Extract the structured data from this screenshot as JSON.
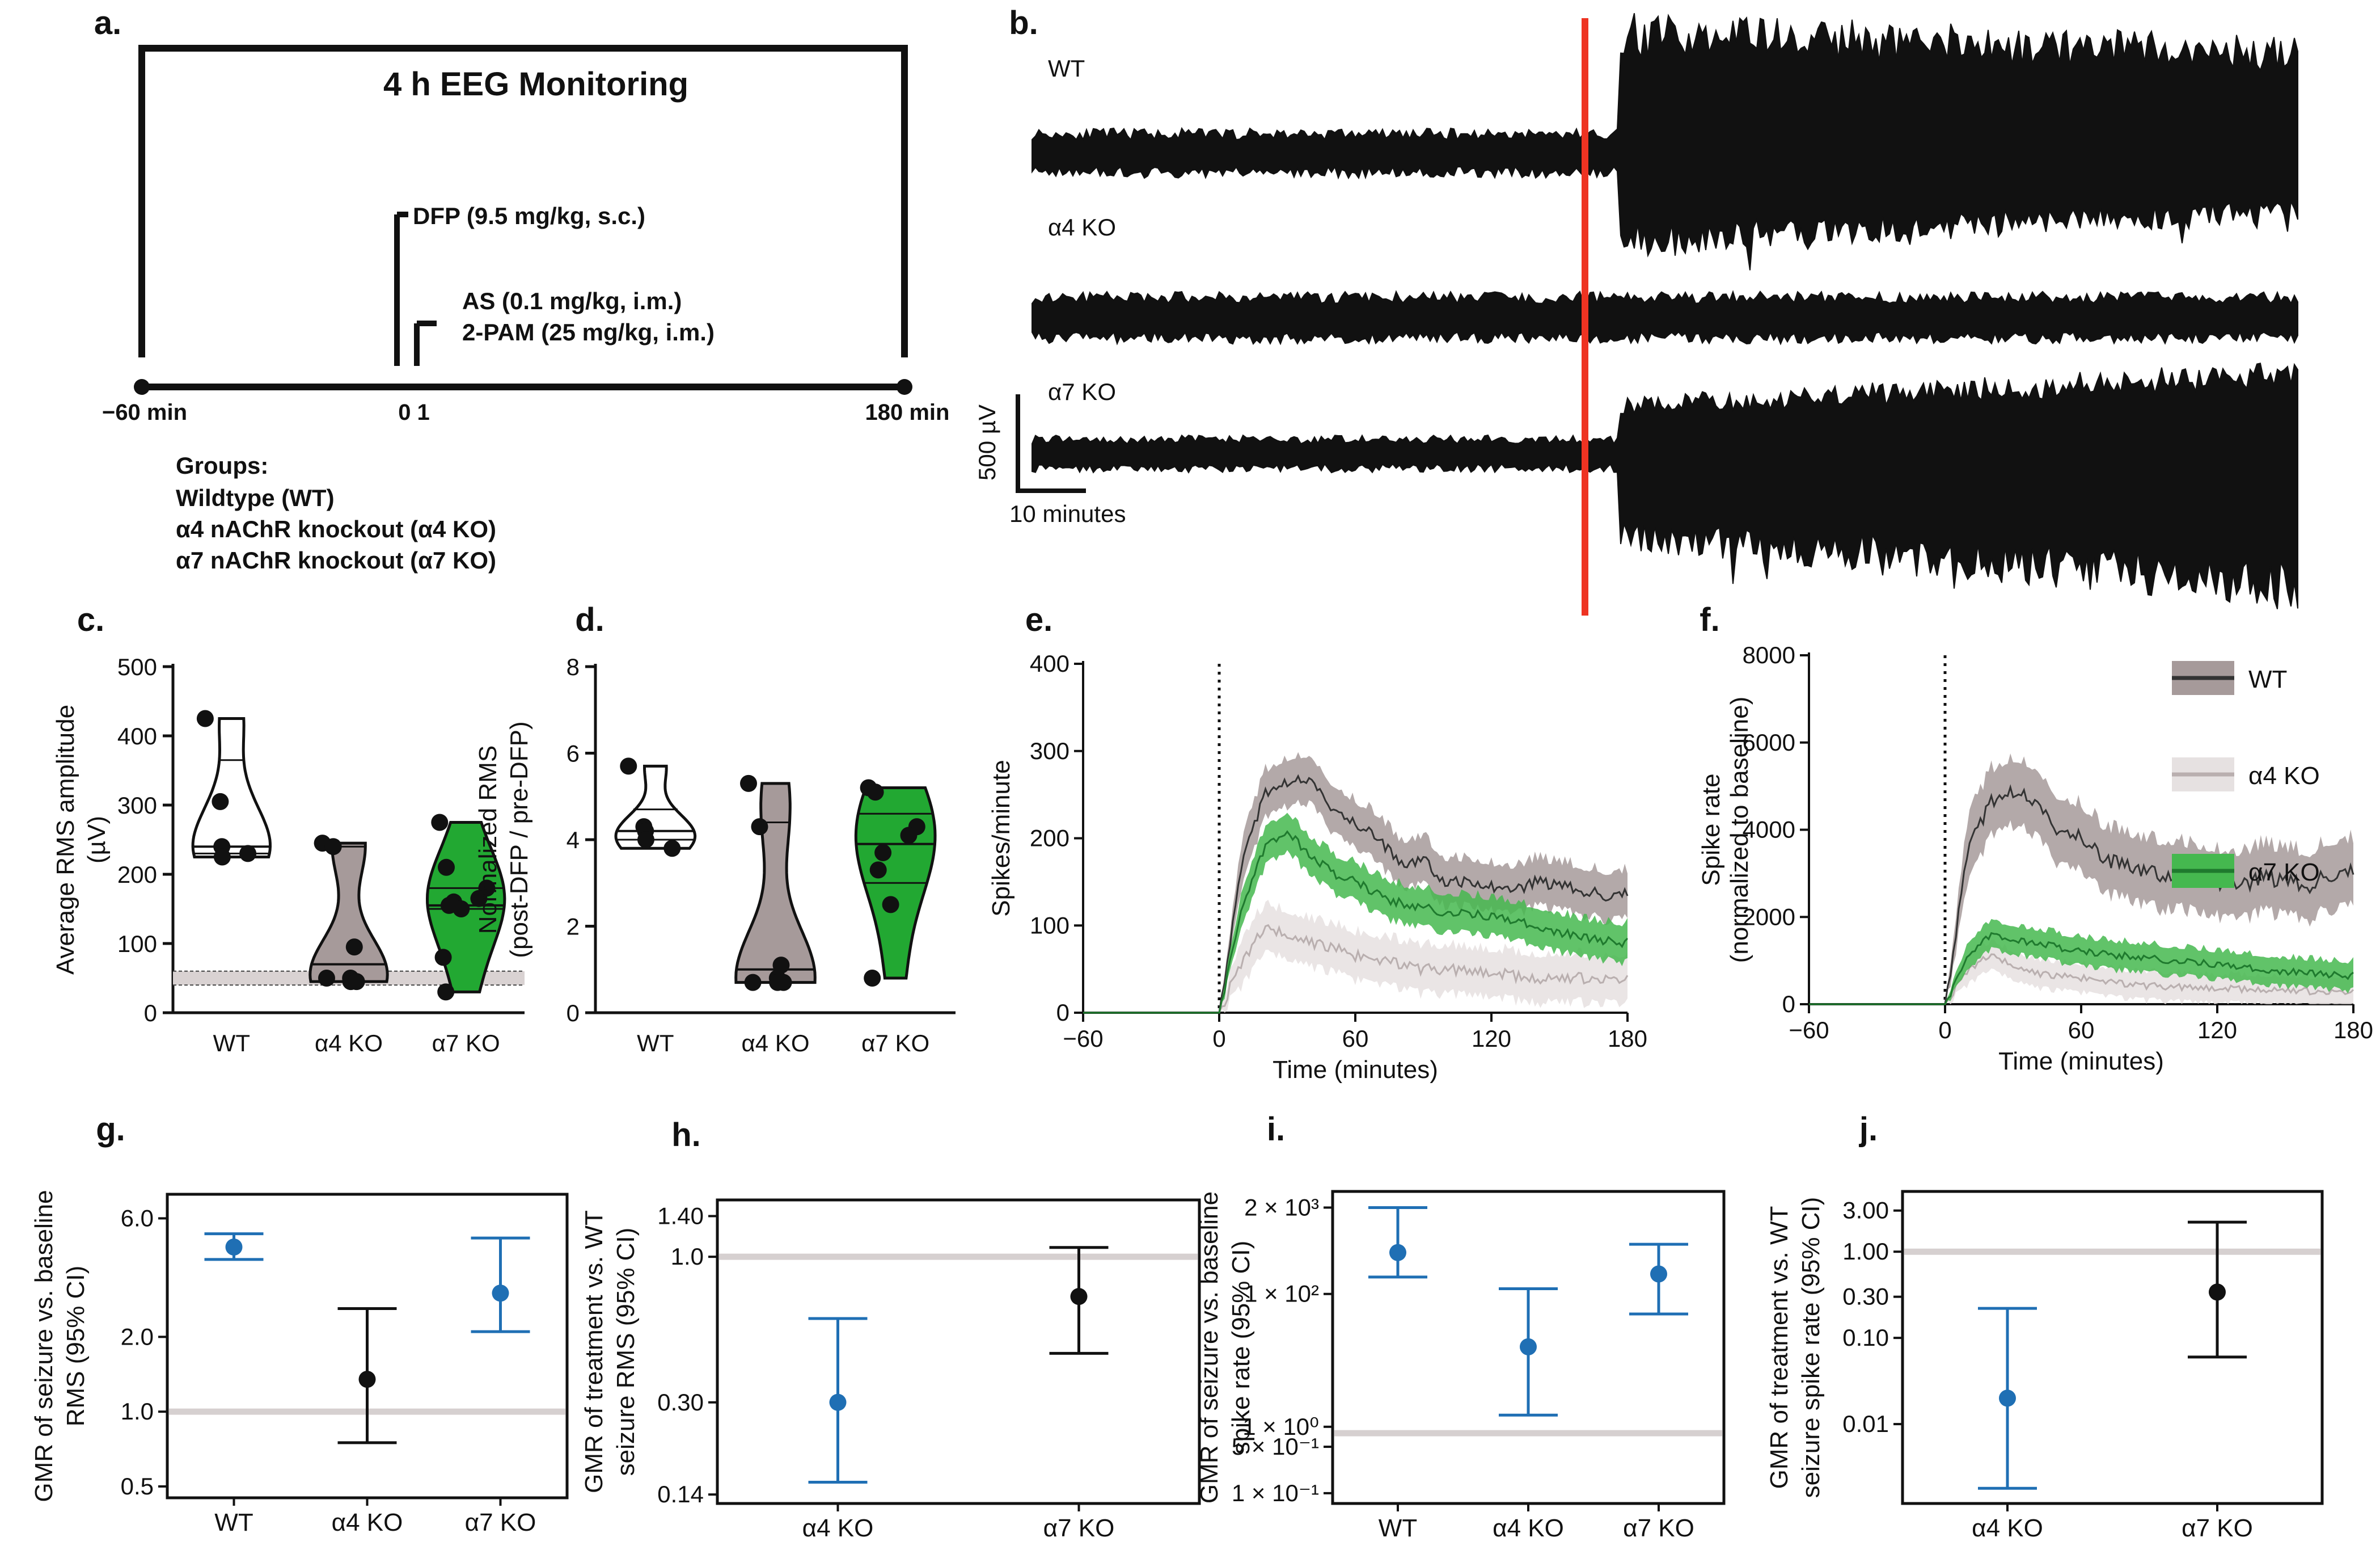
{
  "chart_data": [
    {
      "panel": "a.",
      "type": "diagram",
      "title": "4 h EEG Monitoring",
      "events": [
        {
          "label": "DFP (9.5 mg/kg, s.c.)",
          "time": 0
        },
        {
          "label": "AS (0.1 mg/kg, i.m.)",
          "time": 1
        },
        {
          "label": "2-PAM (25 mg/kg, i.m.)",
          "time": 1
        }
      ],
      "timeline": {
        "min": -60,
        "max": 180,
        "start_label": "−60 min",
        "mid_label": "0 1",
        "end_label": "180 min"
      },
      "groups_title": "Groups:",
      "groups": [
        "Wildtype (WT)",
        "α4 nAChR knockout (α4 KO)",
        "α7 nAChR knockout (α7 KO)"
      ]
    },
    {
      "panel": "b.",
      "type": "line",
      "traces": [
        "WT",
        "α4 KO",
        "α7 KO"
      ],
      "scale_amplitude": "500 µV",
      "scale_time": "10 minutes",
      "marker_color": "#ee3322"
    },
    {
      "panel": "c.",
      "type": "violin",
      "ylabel": "Average RMS amplitude (µV)",
      "ylim": [
        0,
        500
      ],
      "yticks": [
        "0",
        "100",
        "200",
        "300",
        "400",
        "500"
      ],
      "categories": [
        "WT",
        "α4 KO",
        "α7 KO"
      ],
      "points": [
        [
          425,
          305,
          240,
          225,
          230
        ],
        [
          245,
          240,
          95,
          50,
          45,
          45,
          50
        ],
        [
          275,
          210,
          180,
          165,
          160,
          155,
          150,
          80,
          30
        ]
      ],
      "medians": [
        240,
        70,
        155
      ],
      "quartiles": [
        [
          230,
          365
        ],
        [
          45,
          240
        ],
        [
          150,
          180
        ]
      ],
      "baseline_band": [
        40,
        60
      ],
      "fills": [
        "#ffffff",
        "#a69a9a",
        "#22a832"
      ]
    },
    {
      "panel": "d.",
      "type": "violin",
      "ylabel": "Normalized RMS (post-DFP / pre-DFP)",
      "ylim": [
        0,
        8
      ],
      "yticks": [
        "0",
        "2",
        "4",
        "6",
        "8"
      ],
      "categories": [
        "WT",
        "α4 KO",
        "α7 KO"
      ],
      "points": [
        [
          5.7,
          4.3,
          4.2,
          4.0,
          3.8
        ],
        [
          5.3,
          4.3,
          1.1,
          0.8,
          0.7,
          0.7,
          0.7
        ],
        [
          5.2,
          5.1,
          4.3,
          4.1,
          3.7,
          3.3,
          2.5,
          0.8
        ]
      ],
      "medians": [
        4.2,
        1.0,
        3.9
      ],
      "quartiles": [
        [
          4.0,
          4.7
        ],
        [
          0.7,
          4.4
        ],
        [
          3.0,
          4.6
        ]
      ],
      "fills": [
        "#ffffff",
        "#a69a9a",
        "#22a832"
      ]
    },
    {
      "panel": "e.",
      "type": "line",
      "xlabel": "Time (minutes)",
      "ylabel": "Spikes/minute",
      "xlim": [
        -60,
        180
      ],
      "ylim": [
        0,
        400
      ],
      "xticks": [
        "−60",
        "0",
        "60",
        "120",
        "180"
      ],
      "yticks": [
        "0",
        "100",
        "200",
        "300",
        "400"
      ],
      "series": [
        {
          "name": "WT",
          "mean": [
            [
              0,
              0
            ],
            [
              10,
              170
            ],
            [
              20,
              250
            ],
            [
              30,
              265
            ],
            [
              40,
              270
            ],
            [
              50,
              235
            ],
            [
              60,
              215
            ],
            [
              70,
              200
            ],
            [
              80,
              170
            ],
            [
              90,
              175
            ],
            [
              100,
              150
            ],
            [
              110,
              150
            ],
            [
              120,
              145
            ],
            [
              130,
              140
            ],
            [
              140,
              150
            ],
            [
              150,
              145
            ],
            [
              160,
              140
            ],
            [
              170,
              135
            ],
            [
              180,
              135
            ]
          ],
          "band": 25,
          "color": "#333333",
          "fill": "#a69a9a"
        },
        {
          "name": "α4 KO",
          "mean": [
            [
              0,
              0
            ],
            [
              10,
              60
            ],
            [
              20,
              95
            ],
            [
              30,
              90
            ],
            [
              40,
              80
            ],
            [
              50,
              75
            ],
            [
              60,
              65
            ],
            [
              70,
              60
            ],
            [
              80,
              55
            ],
            [
              90,
              50
            ],
            [
              100,
              50
            ],
            [
              120,
              45
            ],
            [
              140,
              40
            ],
            [
              160,
              40
            ],
            [
              180,
              40
            ]
          ],
          "band": 25,
          "color": "#b9afaf",
          "fill": "#e6e1e1"
        },
        {
          "name": "α7 KO",
          "mean": [
            [
              0,
              0
            ],
            [
              10,
              120
            ],
            [
              20,
              190
            ],
            [
              30,
              210
            ],
            [
              40,
              180
            ],
            [
              50,
              160
            ],
            [
              60,
              150
            ],
            [
              70,
              135
            ],
            [
              80,
              125
            ],
            [
              90,
              120
            ],
            [
              100,
              115
            ],
            [
              120,
              110
            ],
            [
              140,
              100
            ],
            [
              160,
              85
            ],
            [
              180,
              80
            ]
          ],
          "band": 20,
          "color": "#1f7a2e",
          "fill": "#45b84f"
        }
      ]
    },
    {
      "panel": "f.",
      "type": "line",
      "xlabel": "Time (minutes)",
      "ylabel": "Spike rate (normalized to baseline)",
      "xlim": [
        -60,
        180
      ],
      "ylim": [
        0,
        8000
      ],
      "xticks": [
        "−60",
        "0",
        "60",
        "120",
        "180"
      ],
      "yticks": [
        "0",
        "2000",
        "4000",
        "6000",
        "8000"
      ],
      "legend": [
        "WT",
        "α4 KO",
        "α7 KO"
      ],
      "series": [
        {
          "name": "WT",
          "mean": [
            [
              0,
              0
            ],
            [
              10,
              3500
            ],
            [
              20,
              4600
            ],
            [
              30,
              4900
            ],
            [
              40,
              4700
            ],
            [
              50,
              4000
            ],
            [
              60,
              3800
            ],
            [
              70,
              3300
            ],
            [
              80,
              3200
            ],
            [
              90,
              3000
            ],
            [
              100,
              3000
            ],
            [
              110,
              2900
            ],
            [
              120,
              2800
            ],
            [
              130,
              2700
            ],
            [
              140,
              2900
            ],
            [
              150,
              2800
            ],
            [
              160,
              2700
            ],
            [
              170,
              3000
            ],
            [
              180,
              3000
            ]
          ],
          "band": 700,
          "color": "#333333",
          "fill": "#a69a9a"
        },
        {
          "name": "α4 KO",
          "mean": [
            [
              0,
              0
            ],
            [
              10,
              800
            ],
            [
              20,
              1100
            ],
            [
              30,
              900
            ],
            [
              40,
              700
            ],
            [
              60,
              600
            ],
            [
              80,
              450
            ],
            [
              100,
              400
            ],
            [
              120,
              350
            ],
            [
              140,
              350
            ],
            [
              160,
              300
            ],
            [
              180,
              300
            ]
          ],
          "band": 300,
          "color": "#b9afaf",
          "fill": "#e6e1e1"
        },
        {
          "name": "α7 KO",
          "mean": [
            [
              0,
              0
            ],
            [
              10,
              1100
            ],
            [
              20,
              1600
            ],
            [
              30,
              1500
            ],
            [
              40,
              1400
            ],
            [
              50,
              1300
            ],
            [
              60,
              1200
            ],
            [
              80,
              1100
            ],
            [
              100,
              1000
            ],
            [
              120,
              900
            ],
            [
              140,
              800
            ],
            [
              160,
              700
            ],
            [
              180,
              650
            ]
          ],
          "band": 300,
          "color": "#1f7a2e",
          "fill": "#45b84f"
        }
      ]
    },
    {
      "panel": "g.",
      "type": "scatter",
      "ylabel": "GMR of seizure vs. baseline RMS (95% CI)",
      "scale": "log",
      "ylim": [
        0.45,
        7.5
      ],
      "yticks": [
        "0.5",
        "1.0",
        "2.0",
        "6.0"
      ],
      "categories": [
        "WT",
        "α4 KO",
        "α7 KO"
      ],
      "estimates": [
        4.6,
        1.35,
        3.0
      ],
      "ci": [
        [
          4.1,
          5.2
        ],
        [
          0.75,
          2.6
        ],
        [
          2.1,
          5.0
        ]
      ],
      "reference": 1.0,
      "colors": [
        "#1f6fb4",
        "#111111",
        "#1f6fb4"
      ]
    },
    {
      "panel": "h.",
      "type": "scatter",
      "ylabel": "GMR of treatment vs. WT seizure RMS (95% CI)",
      "scale": "log",
      "ylim": [
        0.13,
        1.6
      ],
      "yticks": [
        "0.14",
        "0.30",
        "1.0",
        "1.40"
      ],
      "categories": [
        "α4 KO",
        "α7 KO"
      ],
      "estimates": [
        0.3,
        0.72
      ],
      "ci": [
        [
          0.155,
          0.6
        ],
        [
          0.45,
          1.08
        ]
      ],
      "reference": 1.0,
      "colors": [
        "#1f6fb4",
        "#111111"
      ]
    },
    {
      "panel": "i.",
      "type": "scatter",
      "ylabel": "GMR of seizure vs. baseline spike rate (95% CI)",
      "scale": "log",
      "ylim": [
        0.07,
        3500
      ],
      "yticks": [
        "1 × 10⁻¹",
        "5 × 10⁻¹",
        "1 × 10⁰",
        "1 × 10²",
        "2 × 10³"
      ],
      "categories": [
        "WT",
        "α4 KO",
        "α7 KO"
      ],
      "estimates": [
        420,
        16,
        200
      ],
      "ci": [
        [
          180,
          2000
        ],
        [
          1.5,
          120
        ],
        [
          50,
          560
        ]
      ],
      "reference": 0.8,
      "colors": [
        "#1f6fb4",
        "#1f6fb4",
        "#1f6fb4"
      ]
    },
    {
      "panel": "j.",
      "type": "scatter",
      "ylabel": "GMR of treatment vs. WT seizure spike rate (95% CI)",
      "scale": "log",
      "ylim": [
        0.0012,
        5
      ],
      "yticks": [
        "0.01",
        "0.10",
        "0.30",
        "1.00",
        "3.00"
      ],
      "categories": [
        "α4 KO",
        "α7 KO"
      ],
      "estimates": [
        0.02,
        0.34
      ],
      "ci": [
        [
          0.0018,
          0.22
        ],
        [
          0.06,
          2.2
        ]
      ],
      "reference": 1.0,
      "colors": [
        "#1f6fb4",
        "#111111"
      ]
    }
  ]
}
